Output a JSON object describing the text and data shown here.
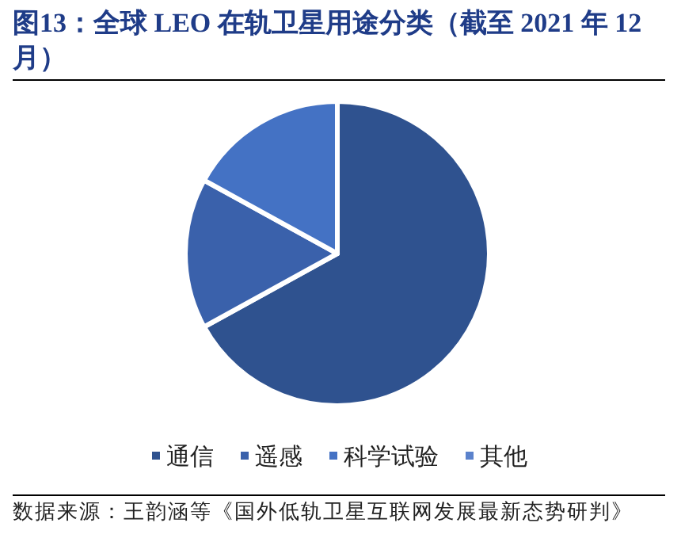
{
  "chart_data": {
    "type": "pie",
    "title": "图13：全球 LEO 在轨卫星用途分类（截至 2021 年 12月）",
    "categories": [
      "通信",
      "遥感",
      "科学试验",
      "其他"
    ],
    "values": [
      67,
      16,
      17,
      0
    ],
    "colors": [
      "#2f528f",
      "#3a61ab",
      "#4472c4",
      "#5b82cc"
    ],
    "legend": "bottom",
    "annotations": [
      "数据来源：王韵涵等《国外低轨卫星互联网发展最新态势研判》"
    ]
  }
}
